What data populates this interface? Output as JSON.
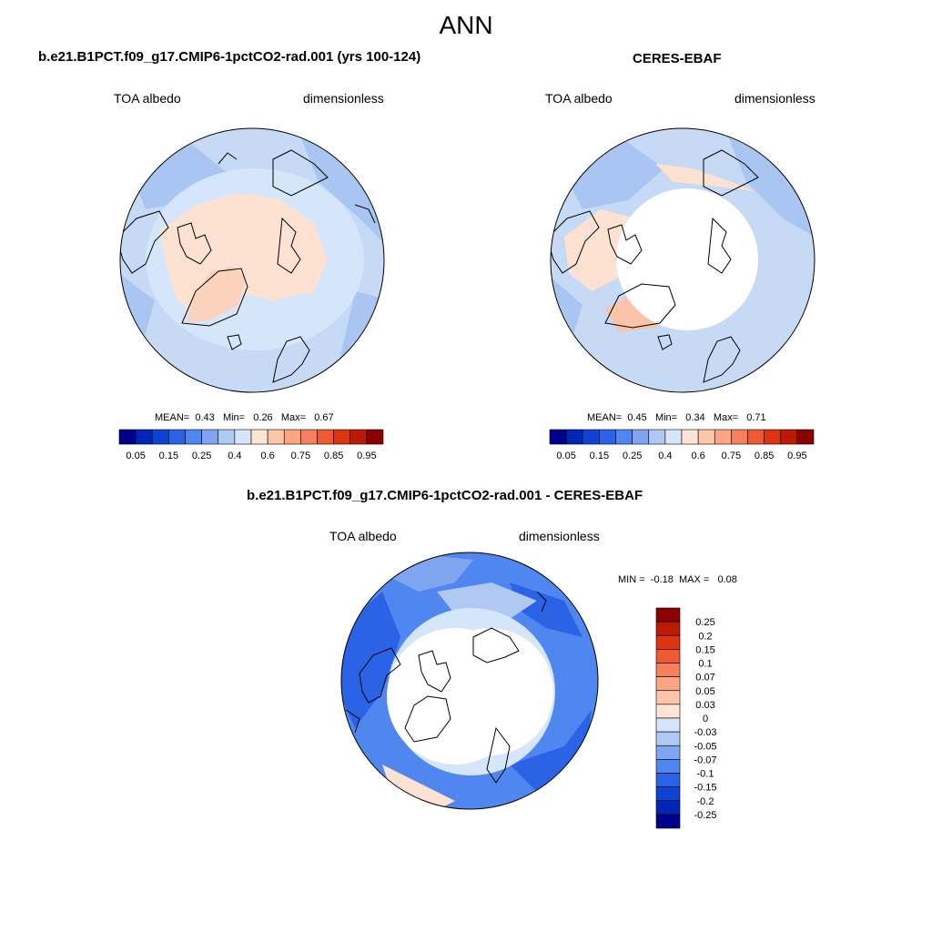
{
  "page_title": "ANN",
  "panels": [
    {
      "title": "b.e21.B1PCT.f09_g17.CMIP6-1pctCO2-rad.001 (yrs 100-124)",
      "left_label": "TOA albedo",
      "right_label": "dimensionless",
      "stats": {
        "mean_label": "MEAN=",
        "mean": "0.43",
        "min_label": "Min=",
        "min": "0.26",
        "max_label": "Max=",
        "max": "0.67"
      }
    },
    {
      "title": "CERES-EBAF",
      "left_label": "TOA albedo",
      "right_label": "dimensionless",
      "stats": {
        "mean_label": "MEAN=",
        "mean": "0.45",
        "min_label": "Min=",
        "min": "0.34",
        "max_label": "Max=",
        "max": "0.71"
      }
    },
    {
      "title": "b.e21.B1PCT.f09_g17.CMIP6-1pctCO2-rad.001 - CERES-EBAF",
      "left_label": "TOA albedo",
      "right_label": "dimensionless",
      "stats": {
        "min_label": "MIN =",
        "min": "-0.18",
        "max_label": "MAX =",
        "max": "0.08"
      }
    }
  ],
  "colorbar_abs": {
    "colors": [
      "#00008b",
      "#0026b7",
      "#0f43d4",
      "#2a63e6",
      "#4f86f0",
      "#7ea5ef",
      "#b0c9f2",
      "#d6e6fa",
      "#ffe4d6",
      "#fdc6aa",
      "#fba585",
      "#f7805c",
      "#ee5a32",
      "#dd3410",
      "#bd1a05",
      "#8b0000"
    ],
    "tick_labels": [
      "0.05",
      "0.15",
      "0.25",
      "0.4",
      "0.6",
      "0.75",
      "0.85",
      "0.95"
    ]
  },
  "colorbar_diff": {
    "colors": [
      "#00008b",
      "#0026b7",
      "#0f43d4",
      "#2a63e6",
      "#4f86f0",
      "#7ea5ef",
      "#b0c9f2",
      "#d6e6fa",
      "#ffe4d6",
      "#fdc6aa",
      "#fba585",
      "#f7805c",
      "#ee5a32",
      "#dd3410",
      "#bd1a05",
      "#8b0000"
    ],
    "tick_labels": [
      "-0.25",
      "-0.2",
      "-0.15",
      "-0.1",
      "-0.07",
      "-0.05",
      "-0.03",
      "0",
      "0.03",
      "0.05",
      "0.07",
      "0.1",
      "0.15",
      "0.2",
      "0.25"
    ]
  }
}
